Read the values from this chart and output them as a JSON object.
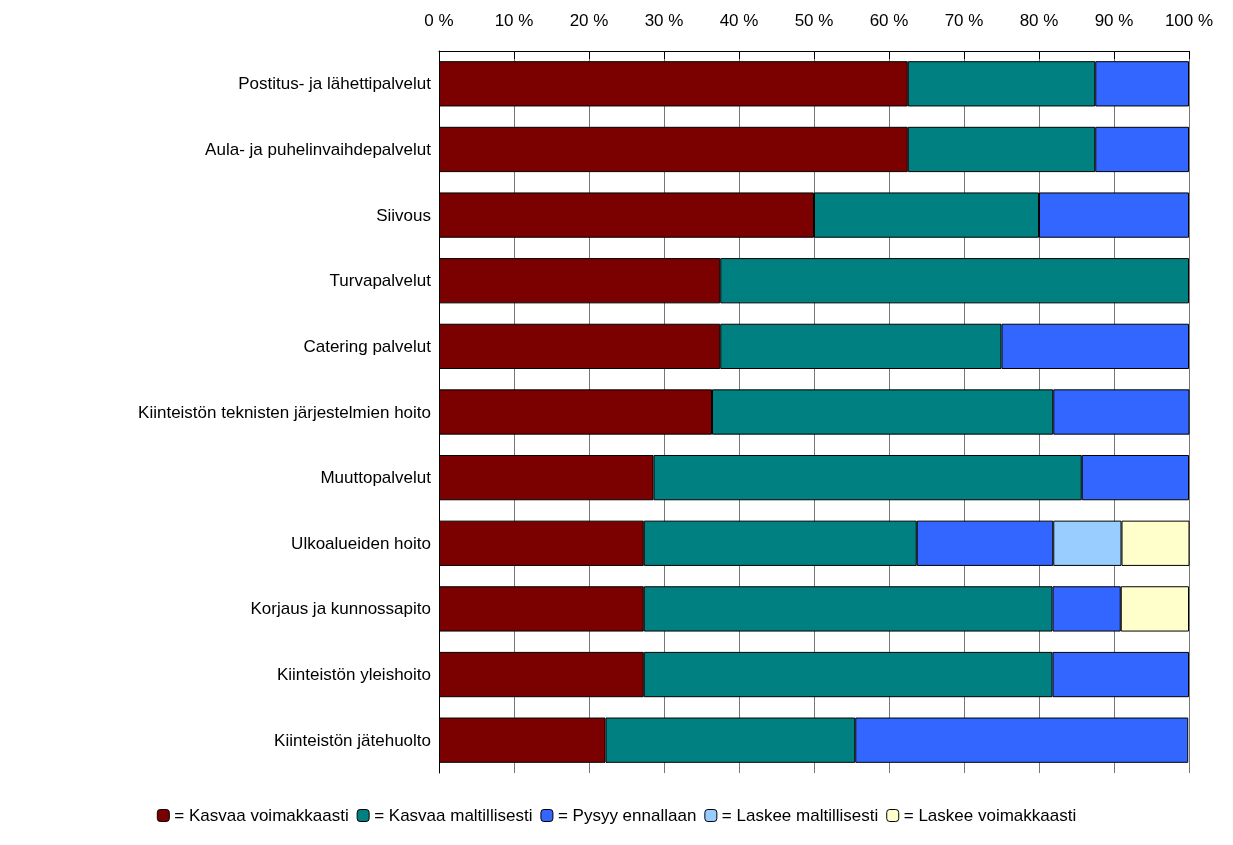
{
  "chart_data": {
    "type": "bar",
    "orientation": "horizontal",
    "stacked": true,
    "categories": [
      "Postitus- ja lähettipalvelut",
      "Aula- ja puhelinvaihdepalvelut",
      "Siivous",
      "Turvapalvelut",
      "Catering palvelut",
      "Kiinteistön teknisten järjestelmien hoito",
      "Muuttopalvelut",
      "Ulkoalueiden hoito",
      "Korjaus ja kunnossapito",
      "Kiinteistön yleishoito",
      "Kiinteistön jätehuolto"
    ],
    "series": [
      {
        "name": "= Kasvaa voimakkaasti",
        "color": "#7b0000",
        "values": [
          62.5,
          62.5,
          50,
          37.5,
          37.5,
          36.4,
          28.6,
          27.3,
          27.3,
          27.3,
          22.2
        ]
      },
      {
        "name": "= Kasvaa maltillisesti",
        "color": "#008080",
        "values": [
          25,
          25,
          30,
          62.5,
          37.5,
          45.5,
          57.1,
          36.4,
          54.5,
          54.5,
          33.3
        ]
      },
      {
        "name": "= Pysyy ennallaan",
        "color": "#3366ff",
        "values": [
          12.5,
          12.5,
          20,
          null,
          25,
          18.2,
          14.3,
          18.2,
          9.1,
          18.2,
          44.4
        ]
      },
      {
        "name": "= Laskee maltillisesti",
        "color": "#99ccff",
        "values": [
          null,
          null,
          null,
          null,
          null,
          null,
          null,
          9.1,
          null,
          null,
          null
        ]
      },
      {
        "name": "= Laskee voimakkaasti",
        "color": "#ffffcc",
        "values": [
          null,
          null,
          null,
          null,
          null,
          null,
          null,
          9.1,
          9.1,
          null,
          null
        ]
      }
    ],
    "xlim": [
      0,
      100
    ],
    "xticks": [
      {
        "value": 0,
        "label": "0 %"
      },
      {
        "value": 10,
        "label": "10 %"
      },
      {
        "value": 20,
        "label": "20 %"
      },
      {
        "value": 30,
        "label": "30 %"
      },
      {
        "value": 40,
        "label": "40 %"
      },
      {
        "value": 50,
        "label": "50 %"
      },
      {
        "value": 60,
        "label": "60 %"
      },
      {
        "value": 70,
        "label": "70 %"
      },
      {
        "value": 80,
        "label": "80 %"
      },
      {
        "value": 90,
        "label": "90 %"
      },
      {
        "value": 100,
        "label": "100 %"
      }
    ],
    "grid": "x",
    "legend": "bottom"
  }
}
